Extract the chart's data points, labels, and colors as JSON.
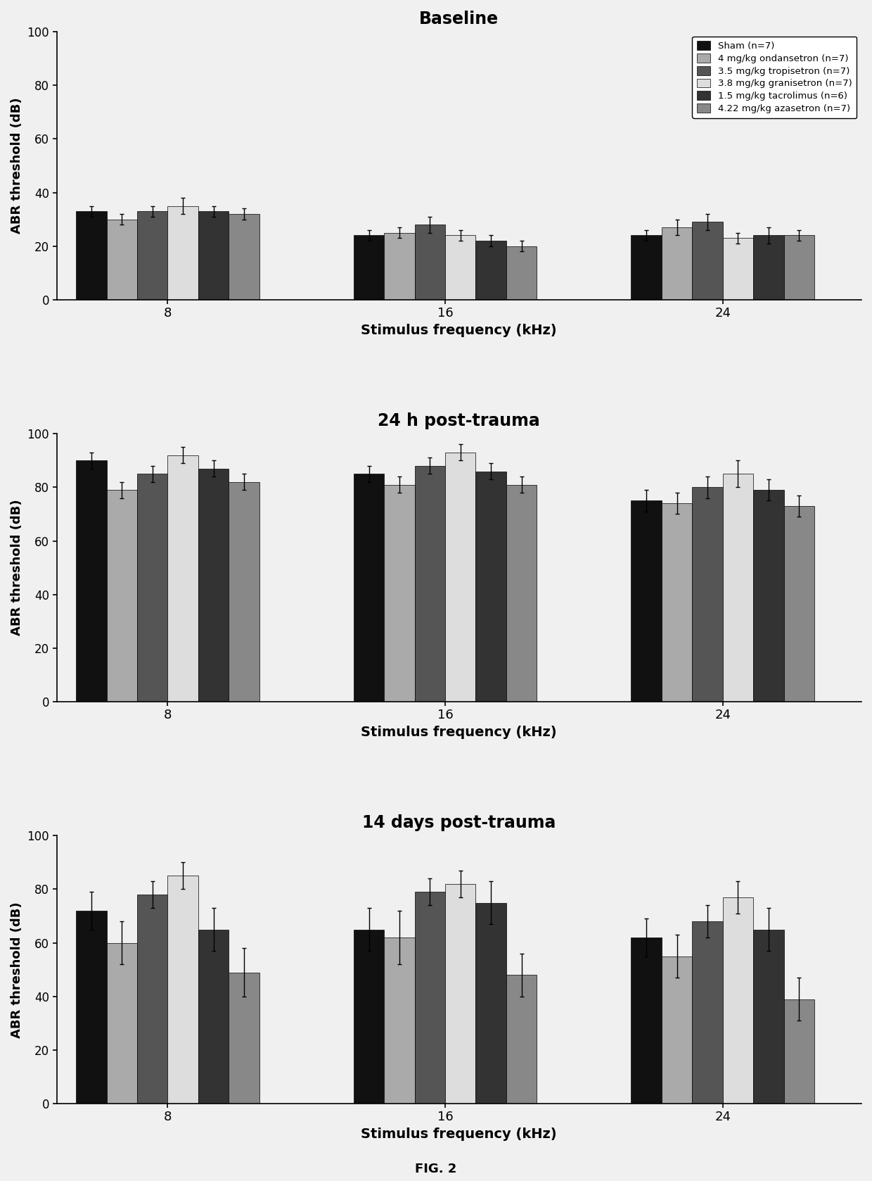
{
  "titles": [
    "Baseline",
    "24 h post-trauma",
    "14 days post-trauma"
  ],
  "xlabel": "Stimulus frequency (kHz)",
  "ylabel": "ABR threshold (dB)",
  "xtick_labels": [
    "8",
    "16",
    "24"
  ],
  "ylim": [
    0,
    100
  ],
  "yticks": [
    0,
    20,
    40,
    60,
    80,
    100
  ],
  "fig_label": "FIG. 2",
  "legend_labels": [
    "Sham (n=7)",
    "4 mg/kg ondansetron (n=7)",
    "3.5 mg/kg tropisetron (n=7)",
    "3.8 mg/kg granisetron (n=7)",
    "1.5 mg/kg tacrolimus (n=6)",
    "4.22 mg/kg azasetron (n=7)"
  ],
  "bar_colors": [
    "#111111",
    "#aaaaaa",
    "#555555",
    "#dddddd",
    "#333333",
    "#888888"
  ],
  "bar_width": 0.11,
  "group_centers": [
    1.0,
    2.0,
    3.0
  ],
  "bar_offsets": [
    -0.275,
    -0.165,
    -0.055,
    0.055,
    0.165,
    0.275
  ],
  "xlim": [
    0.6,
    3.5
  ],
  "bg_color": "#e8e8e8",
  "panel_data": [
    {
      "title": "Baseline",
      "means": [
        [
          33,
          30,
          33,
          35,
          33,
          32
        ],
        [
          24,
          25,
          28,
          24,
          22,
          20
        ],
        [
          24,
          27,
          29,
          23,
          24,
          24
        ]
      ],
      "errors": [
        [
          2,
          2,
          2,
          3,
          2,
          2
        ],
        [
          2,
          2,
          3,
          2,
          2,
          2
        ],
        [
          2,
          3,
          3,
          2,
          3,
          2
        ]
      ]
    },
    {
      "title": "24 h post-trauma",
      "means": [
        [
          90,
          79,
          85,
          92,
          87,
          82
        ],
        [
          85,
          81,
          88,
          93,
          86,
          81
        ],
        [
          75,
          74,
          80,
          85,
          79,
          73
        ]
      ],
      "errors": [
        [
          3,
          3,
          3,
          3,
          3,
          3
        ],
        [
          3,
          3,
          3,
          3,
          3,
          3
        ],
        [
          4,
          4,
          4,
          5,
          4,
          4
        ]
      ]
    },
    {
      "title": "14 days post-trauma",
      "means": [
        [
          72,
          60,
          78,
          85,
          65,
          49
        ],
        [
          65,
          62,
          79,
          82,
          75,
          48
        ],
        [
          62,
          55,
          68,
          77,
          65,
          39
        ]
      ],
      "errors": [
        [
          7,
          8,
          5,
          5,
          8,
          9
        ],
        [
          8,
          10,
          5,
          5,
          8,
          8
        ],
        [
          7,
          8,
          6,
          6,
          8,
          8
        ]
      ]
    }
  ]
}
